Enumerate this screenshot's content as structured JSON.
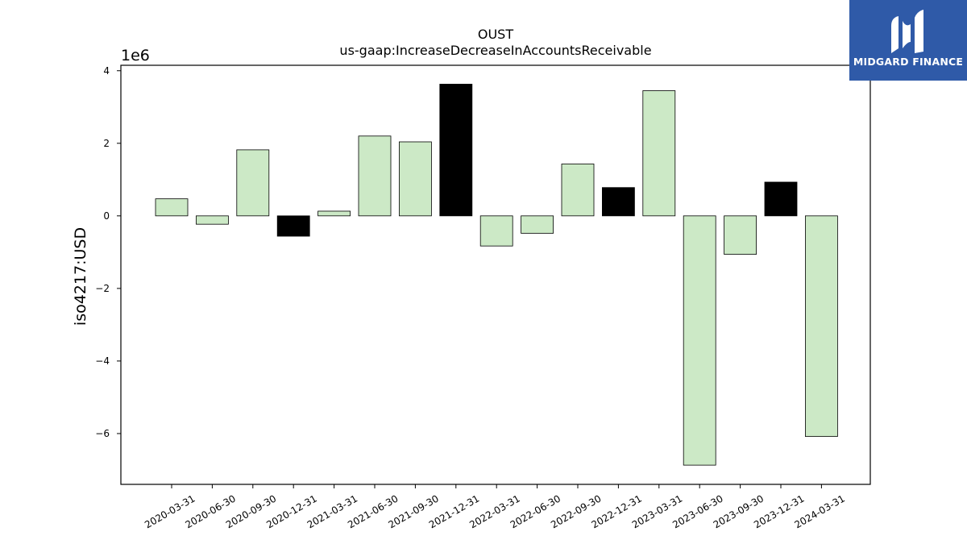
{
  "chart_data": {
    "type": "bar",
    "title": "OUST",
    "subtitle": "us-gaap:IncreaseDecreaseInAccountsReceivable",
    "ylabel": "iso4217:USD",
    "xlabel": "",
    "scale_label": "1e6",
    "ylim": [
      -7.4,
      4.15
    ],
    "yticks": [
      4,
      2,
      0,
      -2,
      -4,
      -6
    ],
    "ytick_labels": [
      "4",
      "2",
      "0",
      "−2",
      "−4",
      "−6"
    ],
    "categories": [
      "2020-03-31",
      "2020-06-30",
      "2020-09-30",
      "2020-12-31",
      "2021-03-31",
      "2021-06-30",
      "2021-09-30",
      "2021-12-31",
      "2022-03-31",
      "2022-06-30",
      "2022-09-30",
      "2022-12-31",
      "2023-03-31",
      "2023-06-30",
      "2023-09-30",
      "2023-12-31",
      "2024-03-31"
    ],
    "values": [
      0.47,
      -0.23,
      1.82,
      -0.56,
      0.13,
      2.2,
      2.04,
      3.63,
      -0.83,
      -0.48,
      1.43,
      0.78,
      3.45,
      -6.87,
      -1.06,
      0.93,
      -6.08
    ],
    "bar_colors": [
      "#cce9c6",
      "#cce9c6",
      "#cce9c6",
      "#000000",
      "#cce9c6",
      "#cce9c6",
      "#cce9c6",
      "#000000",
      "#cce9c6",
      "#cce9c6",
      "#cce9c6",
      "#000000",
      "#cce9c6",
      "#cce9c6",
      "#cce9c6",
      "#000000",
      "#cce9c6"
    ],
    "grid": false
  },
  "logo": {
    "text": "MIDGARD FINANCE",
    "background": "#2f5aa8"
  }
}
